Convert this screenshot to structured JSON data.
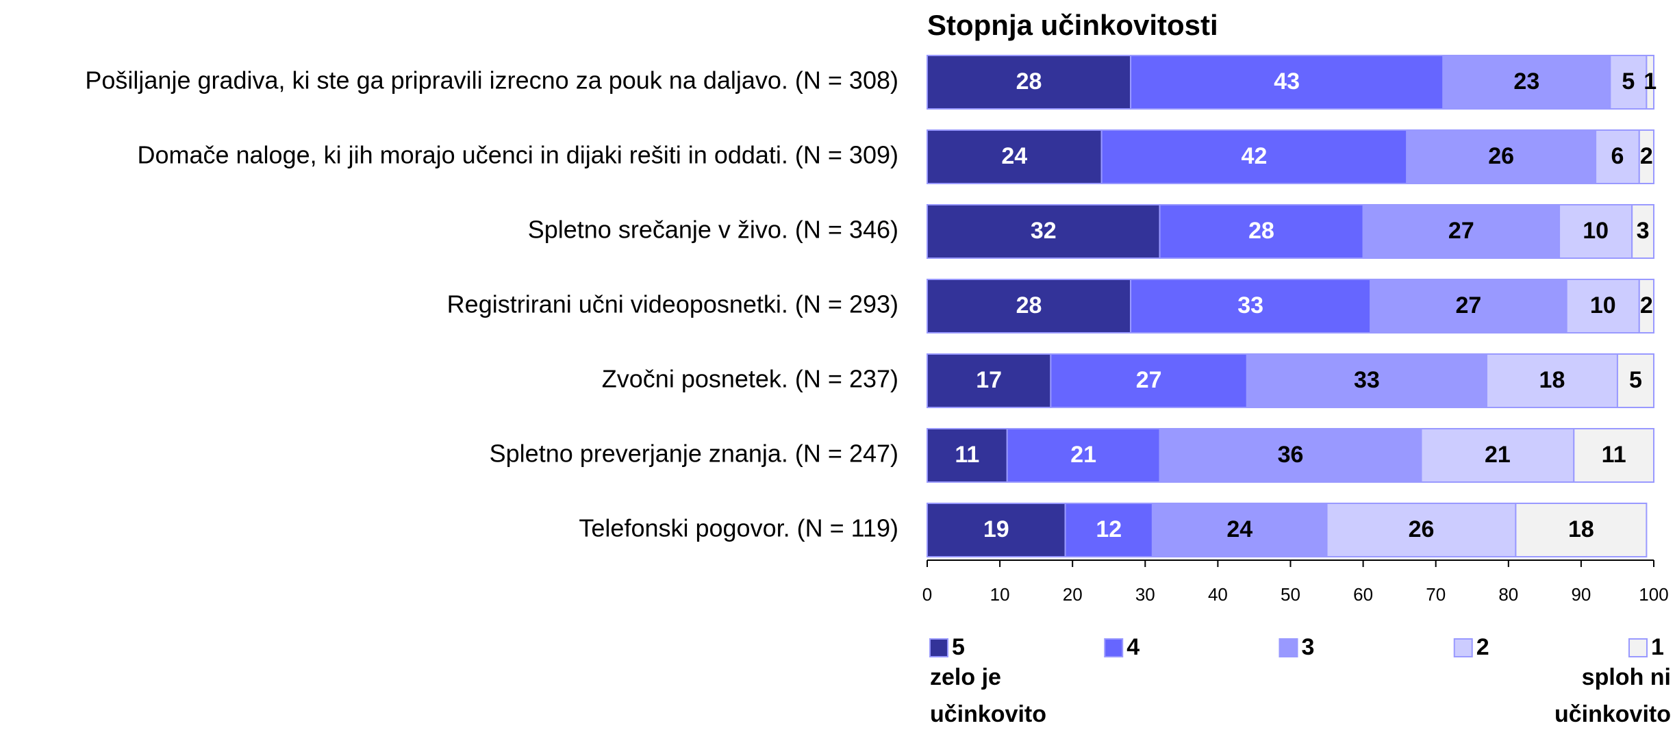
{
  "chart_data": {
    "type": "stacked_bar_horizontal",
    "title": "Stopnja učinkovitosti",
    "categories": [
      "Pošiljanje gradiva, ki ste ga pripravili izrecno za pouk na daljavo. (N = 308)",
      "Domače naloge, ki jih morajo učenci in dijaki rešiti in oddati. (N = 309)",
      "Spletno srečanje v živo. (N = 346)",
      "Registrirani učni videoposnetki. (N = 293)",
      "Zvočni posnetek. (N = 237)",
      "Spletno preverjanje znanja. (N = 247)",
      "Telefonski pogovor. (N = 119)"
    ],
    "series": [
      {
        "name": "5",
        "color": "#333399",
        "label_color": "#ffffff",
        "values": [
          28,
          24,
          32,
          28,
          17,
          11,
          19
        ]
      },
      {
        "name": "4",
        "color": "#6666ff",
        "label_color": "#ffffff",
        "values": [
          43,
          42,
          28,
          33,
          27,
          21,
          12
        ]
      },
      {
        "name": "3",
        "color": "#9999ff",
        "label_color": "#000000",
        "values": [
          23,
          26,
          27,
          27,
          33,
          36,
          24
        ]
      },
      {
        "name": "2",
        "color": "#ccccff",
        "label_color": "#000000",
        "values": [
          5,
          6,
          10,
          10,
          18,
          21,
          26
        ]
      },
      {
        "name": "1",
        "color": "#f2f2f2",
        "label_color": "#000000",
        "values": [
          1,
          2,
          3,
          2,
          5,
          11,
          18
        ]
      }
    ],
    "legend_notes": [
      "zelo je učinkovito",
      "sploh ni učinkovito"
    ],
    "xlim": [
      0,
      100
    ],
    "xticks": [
      0,
      10,
      20,
      30,
      40,
      50,
      60,
      70,
      80,
      90,
      100
    ]
  }
}
